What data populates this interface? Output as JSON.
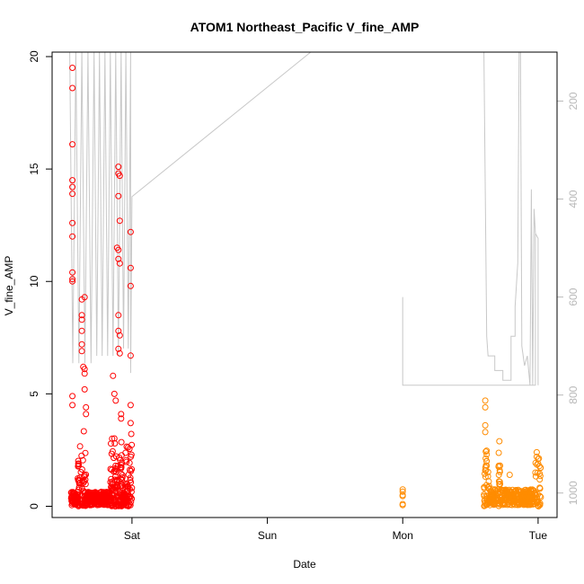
{
  "chart_data": {
    "type": "scatter",
    "title": "ATOM1 Northeast_Pacific V_fine_AMP",
    "xlabel": "Date",
    "ylabel": "V_fine_AMP",
    "x_ticks": [
      {
        "label": "Sat",
        "day": 1
      },
      {
        "label": "Sun",
        "day": 2
      },
      {
        "label": "Mon",
        "day": 3
      },
      {
        "label": "Tue",
        "day": 4
      }
    ],
    "xlim": [
      0.41,
      4.14
    ],
    "ylim": [
      -0.5,
      20.2
    ],
    "y_ticks": [
      0,
      5,
      10,
      15,
      20
    ],
    "right_axis": {
      "ticks": [
        200,
        400,
        600,
        800,
        1000
      ],
      "lim": [
        1050,
        100
      ],
      "color": "#b8b8b8"
    },
    "grid": false,
    "series": [
      {
        "color": "#ff0000",
        "marker": "circle-open"
      },
      {
        "color": "#ff8c00",
        "marker": "circle-open"
      },
      {
        "color": "#c8c8c8",
        "marker": "line",
        "axis": "right"
      }
    ]
  }
}
